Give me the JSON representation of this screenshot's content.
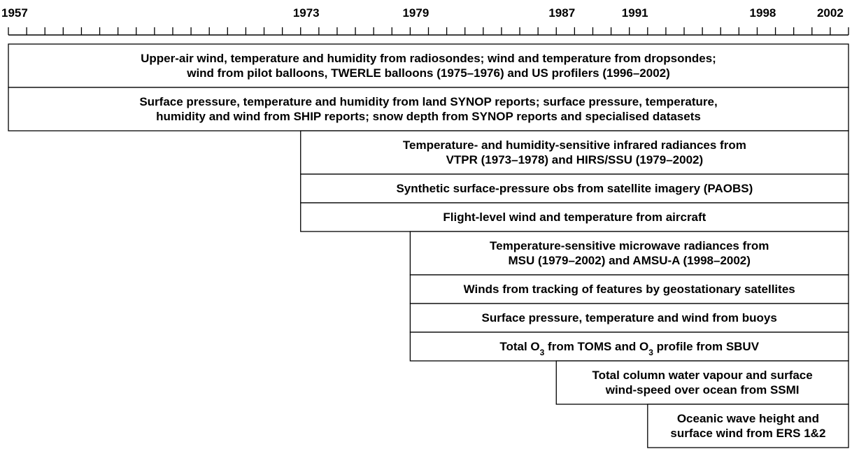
{
  "axis": {
    "range": [
      1957,
      2003
    ],
    "labels": [
      1957,
      1973,
      1979,
      1987,
      1991,
      1998,
      2002
    ]
  },
  "bars": [
    {
      "start": 1957,
      "lines": [
        [
          "Upper-air wind, temperature and humidity from radiosondes; wind and temperature from dropsondes;"
        ],
        [
          "wind from pilot balloons, TWERLE balloons (1975–1976) and US profilers (1996–2002)"
        ]
      ]
    },
    {
      "start": 1957,
      "lines": [
        [
          "Surface pressure, temperature and humidity from land SYNOP reports; surface pressure, temperature,"
        ],
        [
          "humidity and wind from SHIP reports; snow depth from SYNOP reports and specialised datasets"
        ]
      ]
    },
    {
      "start": 1973,
      "lines": [
        [
          "Temperature- and humidity-sensitive infrared radiances from"
        ],
        [
          "VTPR (1973–1978) and HIRS/SSU (1979–2002)"
        ]
      ]
    },
    {
      "start": 1973,
      "lines": [
        [
          "Synthetic surface-pressure obs from satellite imagery (PAOBS)"
        ]
      ]
    },
    {
      "start": 1973,
      "lines": [
        [
          "Flight-level wind and temperature from aircraft"
        ]
      ]
    },
    {
      "start": 1979,
      "lines": [
        [
          "Temperature-sensitive microwave radiances from"
        ],
        [
          "MSU (1979–2002) and AMSU-A (1998–2002)"
        ]
      ]
    },
    {
      "start": 1979,
      "lines": [
        [
          "Winds from tracking of features by geostationary satellites"
        ]
      ]
    },
    {
      "start": 1979,
      "lines": [
        [
          "Surface pressure, temperature and wind from buoys"
        ]
      ]
    },
    {
      "start": 1979,
      "lines": [
        [
          "Total O",
          {
            "sub": "3"
          },
          " from TOMS and O",
          {
            "sub": "3"
          },
          " profile from SBUV"
        ]
      ]
    },
    {
      "start": 1987,
      "lines": [
        [
          "Total column water vapour and surface"
        ],
        [
          "wind-speed over ocean from SSMI"
        ]
      ]
    },
    {
      "start": 1992,
      "lines": [
        [
          "Oceanic wave height and"
        ],
        [
          "surface wind from ERS 1&2"
        ]
      ]
    }
  ]
}
